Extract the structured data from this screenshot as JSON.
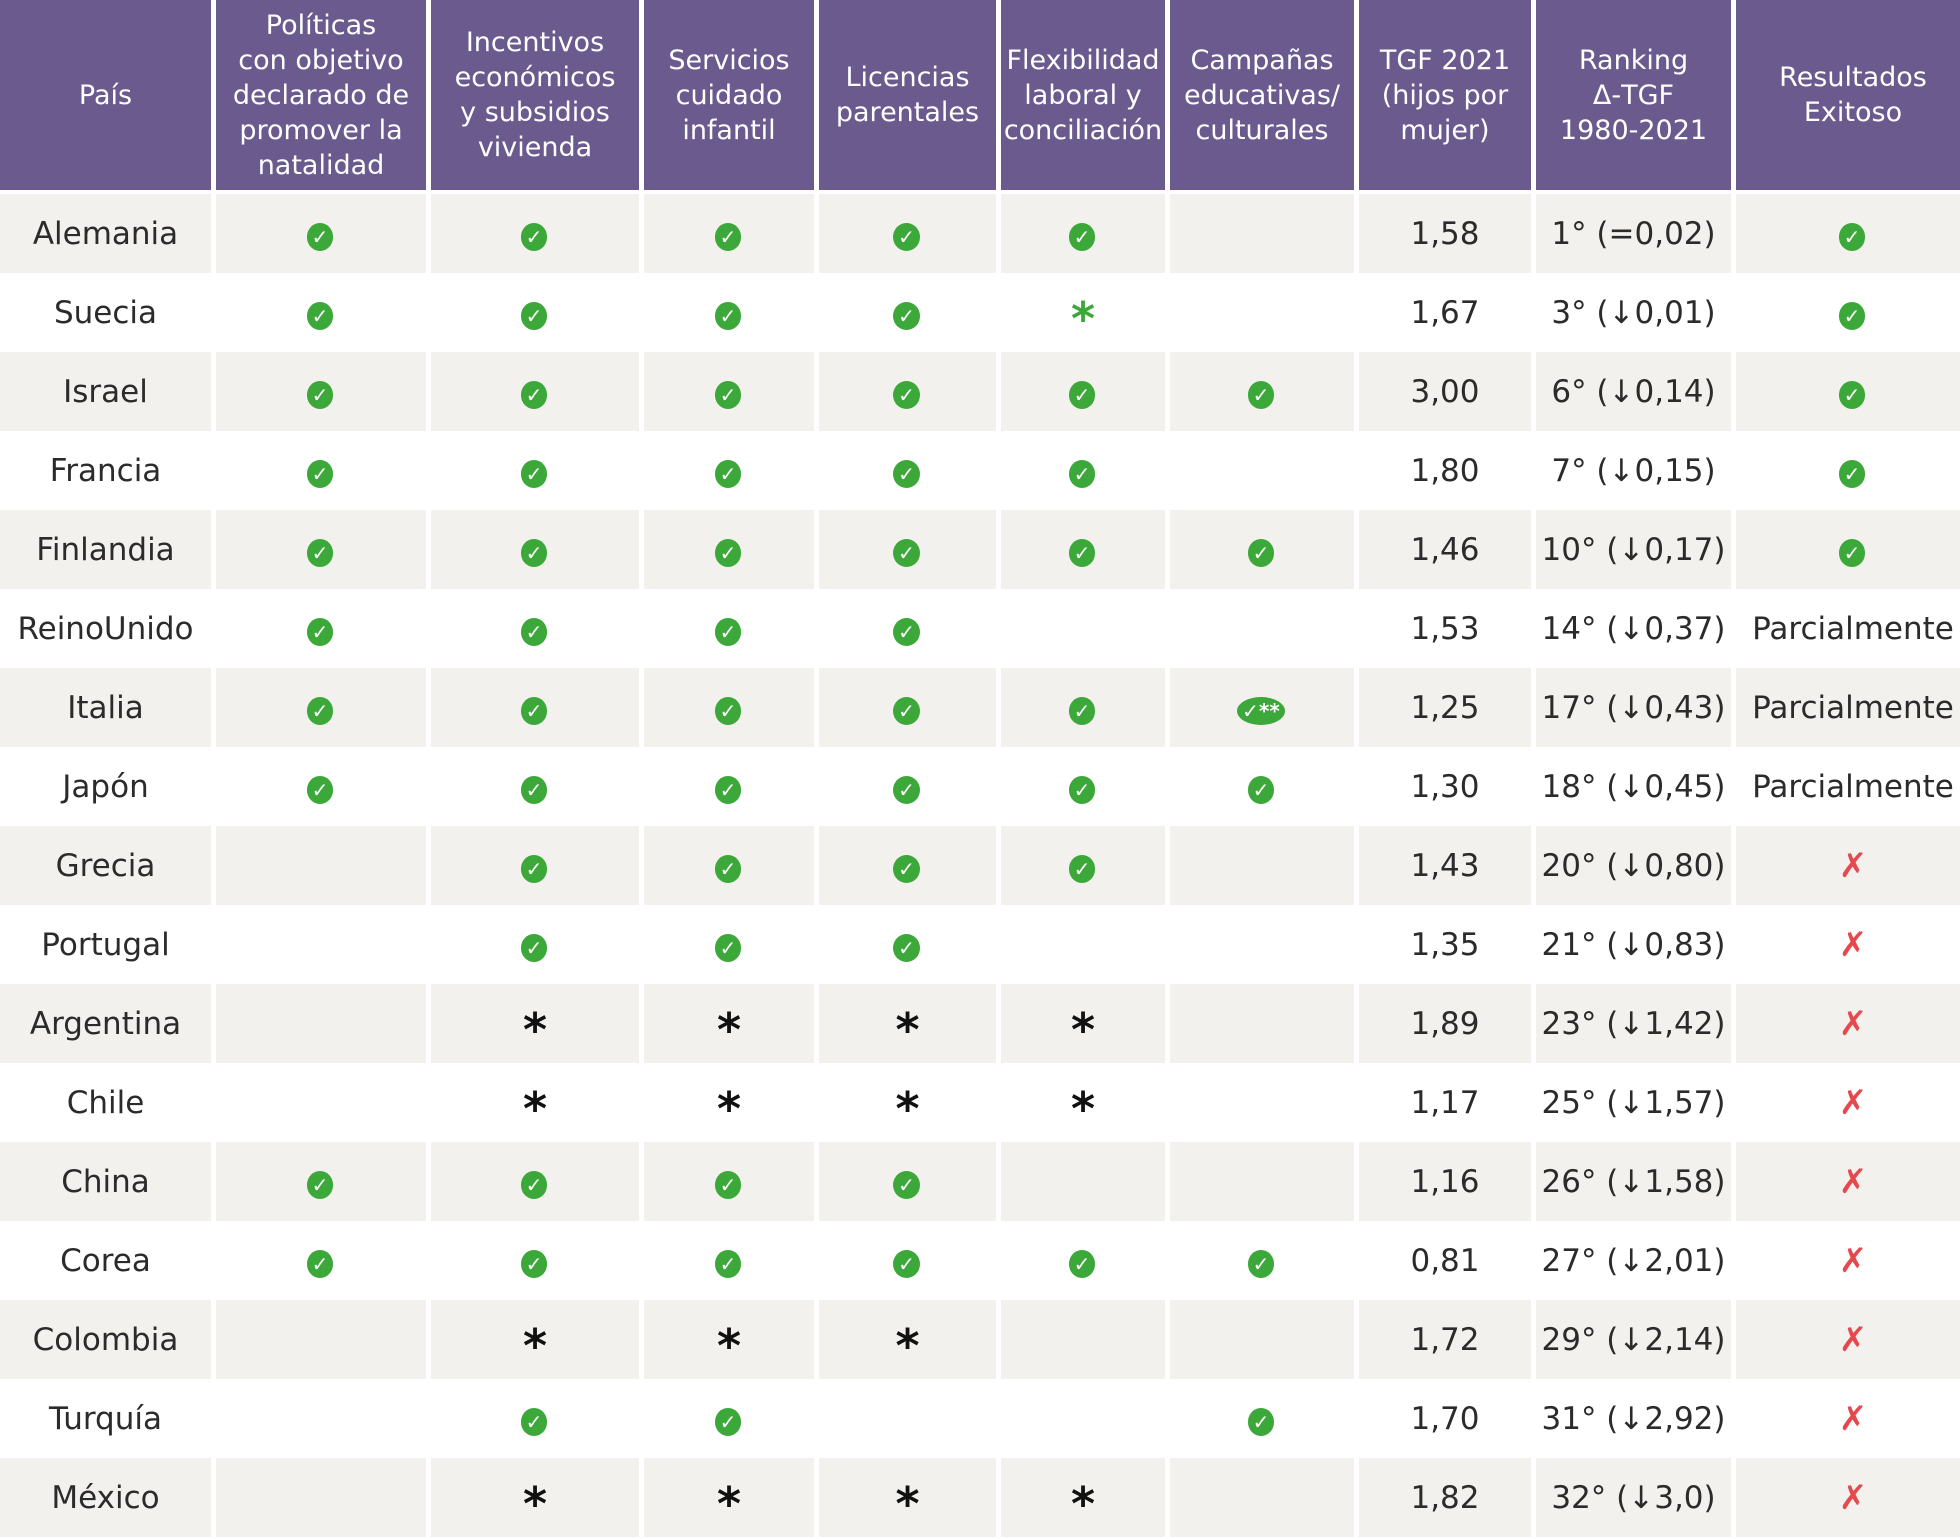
{
  "table": {
    "header": [
      "País",
      "Políticas\ncon objetivo\ndeclarado de\npromover la\nnatalidad",
      "Incentivos\neconómicos\ny subsidios\nvivienda",
      "Servicios\ncuidado\ninfantil",
      "Licencias\nparentales",
      "Flexibilidad\nlaboral y\nconciliación",
      "Campañas\neducativas/\nculturales",
      "TGF 2021\n(hijos por\nmujer)",
      "Ranking\nΔ-TGF\n1980-2021",
      "Resultados\nExitoso"
    ],
    "symbol_styles": {
      "✓": {
        "background": "#3ca83a",
        "size": 20
      },
      "✗": {
        "color": "#e5484d",
        "size": 34
      },
      "*": {
        "color": "#111111",
        "size": 46
      }
    },
    "rows": [
      [
        "Alemania",
        "✓",
        "✓",
        "✓",
        "✓",
        "✓",
        null,
        "1,58",
        "1° (=0,02)",
        "✓"
      ],
      [
        "Suecia",
        "✓",
        "✓",
        "✓",
        "✓",
        {
          "text": "*",
          "color": "#3ca83a"
        },
        null,
        "1,67",
        "3° (↓0,01)",
        "✓"
      ],
      [
        "Israel",
        "✓",
        "✓",
        "✓",
        "✓",
        "✓",
        "✓",
        "3,00",
        "6° (↓0,14)",
        "✓"
      ],
      [
        "Francia",
        "✓",
        "✓",
        "✓",
        "✓",
        "✓",
        null,
        "1,80",
        "7° (↓0,15)",
        "✓"
      ],
      [
        "Finlandia",
        "✓",
        "✓",
        "✓",
        "✓",
        "✓",
        "✓",
        "1,46",
        "10° (↓0,17)",
        "✓"
      ],
      [
        "ReinoUnido",
        "✓",
        "✓",
        "✓",
        "✓",
        null,
        null,
        "1,53",
        "14° (↓0,37)",
        "Parcialmente"
      ],
      [
        "Italia",
        "✓",
        "✓",
        "✓",
        "✓",
        "✓",
        "✓**",
        "1,25",
        "17° (↓0,43)",
        "Parcialmente"
      ],
      [
        "Japón",
        "✓",
        "✓",
        "✓",
        "✓",
        "✓",
        "✓",
        "1,30",
        "18° (↓0,45)",
        "Parcialmente"
      ],
      [
        "Grecia",
        null,
        "✓",
        "✓",
        "✓",
        "✓",
        null,
        "1,43",
        "20° (↓0,80)",
        "✗"
      ],
      [
        "Portugal",
        null,
        "✓",
        "✓",
        "✓",
        null,
        null,
        "1,35",
        "21° (↓0,83)",
        "✗"
      ],
      [
        "Argentina",
        null,
        "*",
        "*",
        "*",
        "*",
        null,
        "1,89",
        "23° (↓1,42)",
        "✗"
      ],
      [
        "Chile",
        null,
        "*",
        "*",
        "*",
        "*",
        null,
        "1,17",
        "25° (↓1,57)",
        "✗"
      ],
      [
        "China",
        "✓",
        "✓",
        "✓",
        "✓",
        null,
        null,
        "1,16",
        "26° (↓1,58)",
        "✗"
      ],
      [
        "Corea",
        "✓",
        "✓",
        "✓",
        "✓",
        "✓",
        "✓",
        "0,81",
        "27° (↓2,01)",
        "✗"
      ],
      [
        "Colombia",
        null,
        "*",
        "*",
        "*",
        null,
        null,
        "1,72",
        "29° (↓2,14)",
        "✗"
      ],
      [
        "Turquía",
        null,
        "✓",
        "✓",
        null,
        null,
        "✓",
        "1,70",
        "31° (↓2,92)",
        "✗"
      ],
      [
        "México",
        null,
        "*",
        "*",
        "*",
        "*",
        null,
        "1,82",
        "32° (↓3,0)",
        "✗"
      ]
    ]
  }
}
